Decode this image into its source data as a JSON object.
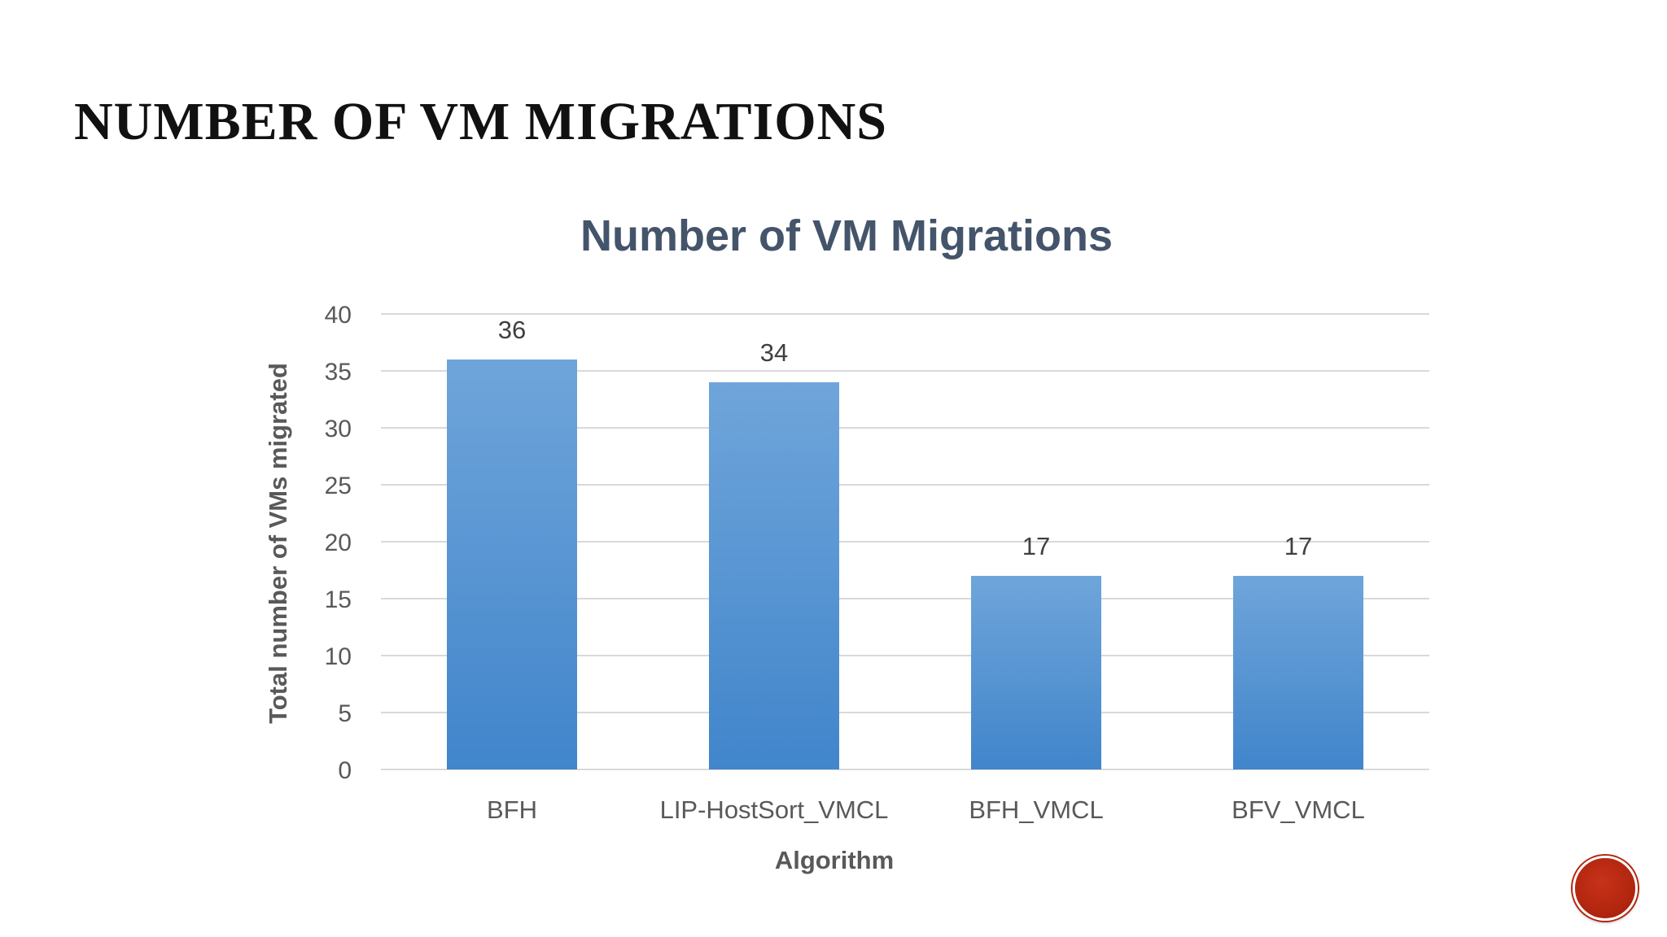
{
  "slide": {
    "title": "NUMBER OF VM MIGRATIONS"
  },
  "colors": {
    "bar_top": "#6fa5da",
    "bar_bottom": "#4185cb",
    "gridline": "#d9d9d9",
    "axis_text": "#595959",
    "chart_title": "#44546a",
    "nav_button": "#b3260f"
  },
  "nav": {
    "icon": "red-circle-button-icon"
  },
  "chart_data": {
    "type": "bar",
    "title": "Number of VM Migrations",
    "xlabel": "Algorithm",
    "ylabel": "Total number of VMs migrated",
    "categories": [
      "BFH",
      "LIP-HostSort_VMCL",
      "BFH_VMCL",
      "BFV_VMCL"
    ],
    "values": [
      36,
      34,
      17,
      17
    ],
    "data_labels": [
      "36",
      "34",
      "17",
      "17"
    ],
    "ylim": [
      0,
      40
    ],
    "yticks": [
      0,
      5,
      10,
      15,
      20,
      25,
      30,
      35,
      40
    ],
    "ytick_labels": [
      "0",
      "5",
      "10",
      "15",
      "20",
      "25",
      "30",
      "35",
      "40"
    ],
    "grid": true,
    "legend": "none"
  }
}
